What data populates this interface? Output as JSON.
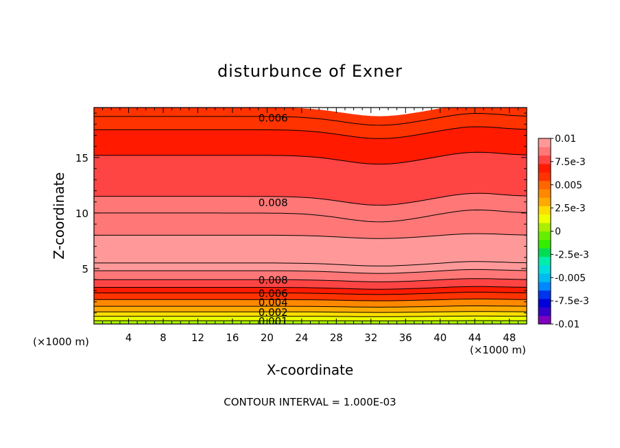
{
  "chart_data": {
    "type": "heatmap",
    "title": "disturbunce of Exner",
    "xlabel": "X-coordinate",
    "ylabel": "Z-coordinate",
    "x_unit_left": "(×1000 m)",
    "x_unit_right": "(×1000 m)",
    "footer": "CONTOUR INTERVAL = 1.000E-03",
    "xlim": [
      0,
      50
    ],
    "ylim": [
      0,
      19.5
    ],
    "x_ticks": [
      4,
      8,
      12,
      16,
      20,
      24,
      28,
      32,
      36,
      40,
      44,
      48
    ],
    "y_ticks": [
      5,
      10,
      15
    ],
    "colorbar": {
      "range": [
        -0.01,
        0.01
      ],
      "tick_labels": [
        "0.01",
        "7.5e-3",
        "0.005",
        "2.5e-3",
        "0",
        "-2.5e-3",
        "-0.005",
        "-7.5e-3",
        "-0.01"
      ],
      "colors": [
        "#7f00bf",
        "#3300cc",
        "#0000dd",
        "#0033ee",
        "#0088ff",
        "#00bbee",
        "#00dddd",
        "#00eeaa",
        "#00dd55",
        "#33ee00",
        "#66ee00",
        "#aaee00",
        "#eeff00",
        "#ffdd00",
        "#ffaa00",
        "#ff8800",
        "#ff6600",
        "#ff3300",
        "#ff1a00",
        "#ff4444",
        "#ff7777",
        "#ff9999"
      ]
    },
    "layers": [
      {
        "z": 0.0,
        "value": 0.0
      },
      {
        "z": 0.3,
        "value": 0.001
      },
      {
        "z": 0.7,
        "value": 0.002
      },
      {
        "z": 1.1,
        "value": 0.003
      },
      {
        "z": 1.6,
        "value": 0.004
      },
      {
        "z": 2.2,
        "value": 0.005
      },
      {
        "z": 2.8,
        "value": 0.006
      },
      {
        "z": 3.3,
        "value": 0.007
      },
      {
        "z": 4.0,
        "value": 0.008
      },
      {
        "z": 4.8,
        "value": 0.009
      },
      {
        "z": 5.5,
        "value": 0.0095
      },
      {
        "z": 8.0,
        "value": 0.009
      },
      {
        "z": 10.0,
        "value": 0.0085
      },
      {
        "z": 11.5,
        "value": 0.008
      },
      {
        "z": 15.2,
        "value": 0.007
      },
      {
        "z": 17.5,
        "value": 0.0065
      },
      {
        "z": 18.7,
        "value": 0.006
      },
      {
        "z": 19.5,
        "value": 0.0058
      }
    ],
    "contour_labels": [
      {
        "text": "0.006",
        "x": 19,
        "z": 18.6
      },
      {
        "text": "0.008",
        "x": 19,
        "z": 11.0
      },
      {
        "text": "0.008",
        "x": 19,
        "z": 4.0
      },
      {
        "text": "0.006",
        "x": 19,
        "z": 2.8
      },
      {
        "text": "0.004",
        "x": 19,
        "z": 2.0
      },
      {
        "text": "0.002",
        "x": 19,
        "z": 1.1
      },
      {
        "text": "0.001",
        "x": 19,
        "z": 0.3
      }
    ]
  }
}
